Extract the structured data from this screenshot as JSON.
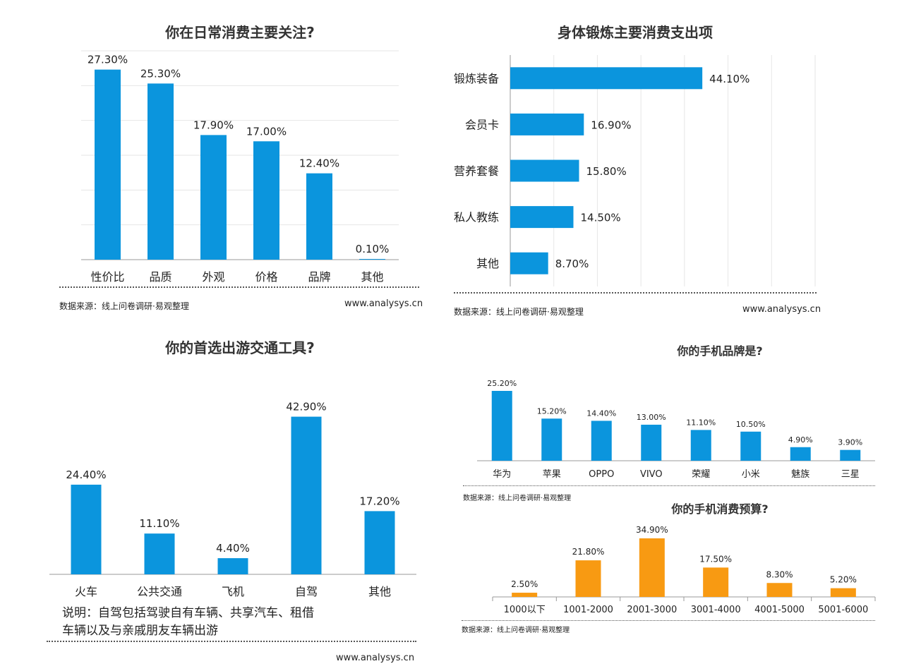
{
  "colors": {
    "blue": "#0b95dd",
    "orange": "#f89a12",
    "grid": "#e6e6e6",
    "axis": "#9a9a9a"
  },
  "footer": {
    "source": "数据来源：线上问卷调研·易观整理",
    "site": "www.analysys.cn"
  },
  "note": "说明：自驾包括驾驶自有车辆、共享汽车、租借车辆以及与亲戚朋友车辆出游",
  "chart_data": [
    {
      "id": "daily-focus",
      "type": "bar",
      "title": "你在日常消费主要关注?",
      "categories": [
        "性价比",
        "品质",
        "外观",
        "价格",
        "品牌",
        "其他"
      ],
      "values": [
        27.3,
        25.3,
        17.9,
        17.0,
        12.4,
        0.1
      ],
      "labels": [
        "27.30%",
        "25.30%",
        "17.90%",
        "17.00%",
        "12.40%",
        "0.10%"
      ],
      "ylim": [
        0,
        30
      ],
      "grid": true,
      "color": "#0b95dd"
    },
    {
      "id": "fitness-spending",
      "type": "bar",
      "orientation": "horizontal",
      "title": "身体锻炼主要消费支出项",
      "categories": [
        "锻炼装备",
        "会员卡",
        "营养套餐",
        "私人教练",
        "其他"
      ],
      "values": [
        44.1,
        16.9,
        15.8,
        14.5,
        8.7
      ],
      "labels": [
        "44.10%",
        "16.90%",
        "15.80%",
        "14.50%",
        "8.70%"
      ],
      "xlim": [
        0,
        70
      ],
      "grid": true,
      "color": "#0b95dd"
    },
    {
      "id": "travel-transport",
      "type": "bar",
      "title": "你的首选出游交通工具?",
      "categories": [
        "火车",
        "公共交通",
        "飞机",
        "自驾",
        "其他"
      ],
      "values": [
        24.4,
        11.1,
        4.4,
        42.9,
        17.2
      ],
      "labels": [
        "24.40%",
        "11.10%",
        "4.40%",
        "42.90%",
        "17.20%"
      ],
      "ylim": [
        0,
        48
      ],
      "grid": false,
      "color": "#0b95dd"
    },
    {
      "id": "phone-brand",
      "type": "bar",
      "title": "你的手机品牌是?",
      "categories": [
        "华为",
        "苹果",
        "OPPO",
        "VIVO",
        "荣耀",
        "小米",
        "魅族",
        "三星"
      ],
      "values": [
        25.2,
        15.2,
        14.4,
        13.0,
        11.1,
        10.5,
        4.9,
        3.9
      ],
      "labels": [
        "25.20%",
        "15.20%",
        "14.40%",
        "13.00%",
        "11.10%",
        "10.50%",
        "4.90%",
        "3.90%"
      ],
      "ylim": [
        0,
        28
      ],
      "grid": false,
      "color": "#0b95dd"
    },
    {
      "id": "phone-budget",
      "type": "bar",
      "title": "你的手机消费预算?",
      "categories": [
        "1000以下",
        "1001-2000",
        "2001-3000",
        "3001-4000",
        "4001-5000",
        "5001-6000"
      ],
      "values": [
        2.5,
        21.8,
        34.9,
        17.5,
        8.3,
        5.2
      ],
      "labels": [
        "2.50%",
        "21.80%",
        "34.90%",
        "17.50%",
        "8.30%",
        "5.20%"
      ],
      "ylim": [
        0,
        37
      ],
      "grid": false,
      "color": "#f89a12"
    }
  ]
}
